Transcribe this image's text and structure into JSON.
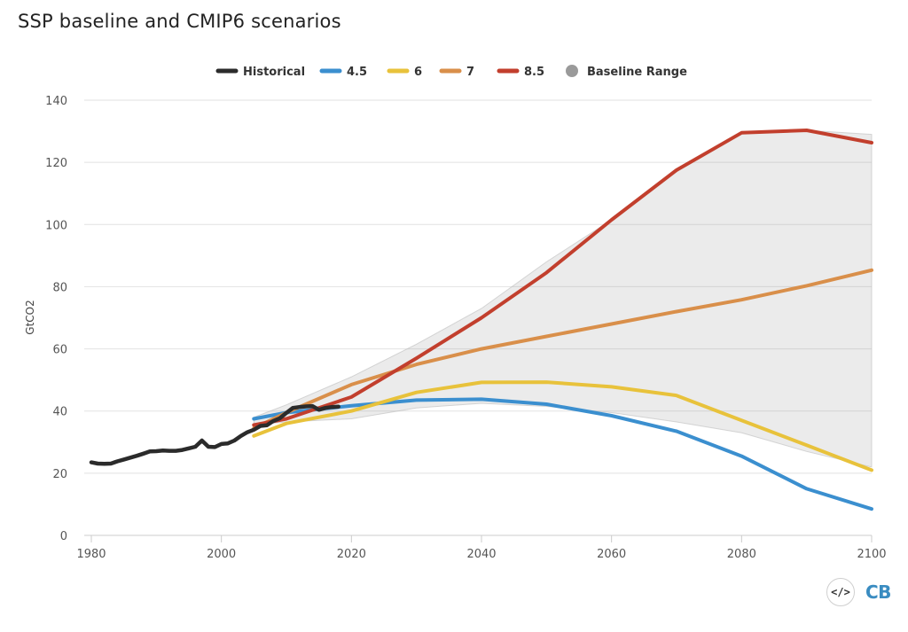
{
  "chart_data": {
    "type": "line",
    "title": "SSP baseline and CMIP6 scenarios",
    "xlabel": "",
    "ylabel": "GtCO2",
    "xlim": [
      1980,
      2100
    ],
    "ylim": [
      0,
      140
    ],
    "x_ticks": [
      1980,
      2000,
      2020,
      2040,
      2060,
      2080,
      2100
    ],
    "y_ticks": [
      0,
      20,
      40,
      60,
      80,
      100,
      120,
      140
    ],
    "grid": "horizontal",
    "legend_position": "top-center",
    "legend": [
      "Historical",
      "4.5",
      "6",
      "7",
      "8.5",
      "Baseline Range"
    ],
    "series": [
      {
        "name": "Historical",
        "color": "#2b2b2b",
        "x": [
          1980,
          1981,
          1982,
          1983,
          1984,
          1985,
          1986,
          1987,
          1988,
          1989,
          1990,
          1991,
          1992,
          1993,
          1994,
          1995,
          1996,
          1997,
          1998,
          1999,
          2000,
          2001,
          2002,
          2003,
          2004,
          2005,
          2006,
          2007,
          2008,
          2009,
          2010,
          2011,
          2012,
          2013,
          2014,
          2015,
          2016,
          2017,
          2018
        ],
        "y": [
          23.5,
          23.1,
          23.0,
          23.1,
          23.8,
          24.4,
          25.0,
          25.6,
          26.3,
          27.0,
          27.1,
          27.3,
          27.2,
          27.2,
          27.5,
          28.0,
          28.5,
          30.5,
          28.5,
          28.4,
          29.4,
          29.6,
          30.5,
          32.0,
          33.2,
          34.0,
          35.2,
          35.4,
          36.8,
          37.7,
          39.4,
          41.0,
          41.3,
          41.5,
          41.6,
          40.4,
          41.0,
          41.3,
          41.4
        ]
      },
      {
        "name": "4.5",
        "color": "#3b8fcf",
        "x": [
          2005,
          2010,
          2020,
          2030,
          2040,
          2050,
          2060,
          2070,
          2080,
          2090,
          2100
        ],
        "y": [
          37.5,
          39.5,
          41.7,
          43.5,
          43.8,
          42.2,
          38.5,
          33.5,
          25.5,
          15.0,
          8.5
        ]
      },
      {
        "name": "6",
        "color": "#e8c23b",
        "x": [
          2005,
          2010,
          2020,
          2030,
          2040,
          2050,
          2060,
          2070,
          2080,
          2090,
          2100
        ],
        "y": [
          32.0,
          36.0,
          40.0,
          46.0,
          49.2,
          49.3,
          47.8,
          45.0,
          37.0,
          29.0,
          21.0
        ]
      },
      {
        "name": "7",
        "color": "#d98f4a",
        "x": [
          2005,
          2010,
          2020,
          2030,
          2040,
          2050,
          2060,
          2070,
          2080,
          2090,
          2100
        ],
        "y": [
          34.5,
          39.5,
          48.5,
          55.0,
          60.0,
          64.0,
          68.0,
          72.0,
          75.8,
          80.3,
          85.3
        ]
      },
      {
        "name": "8.5",
        "color": "#c23f2d",
        "x": [
          2005,
          2010,
          2020,
          2030,
          2040,
          2050,
          2060,
          2070,
          2080,
          2090,
          2100
        ],
        "y": [
          35.5,
          37.5,
          44.5,
          57.0,
          70.0,
          84.5,
          101.5,
          117.5,
          129.5,
          130.3,
          126.3
        ]
      },
      {
        "name": "Baseline Range",
        "color": "#9a9a9a",
        "type": "area",
        "x": [
          2005,
          2010,
          2020,
          2030,
          2040,
          2050,
          2060,
          2070,
          2080,
          2090,
          2100
        ],
        "lower": [
          35.5,
          36.5,
          37.5,
          41.0,
          42.5,
          41.5,
          39.5,
          36.5,
          33.0,
          27.0,
          22.0
        ],
        "upper": [
          38.0,
          42.0,
          51.0,
          61.5,
          73.0,
          88.0,
          101.5,
          117.5,
          129.5,
          130.3,
          129.0
        ]
      }
    ]
  },
  "branding": {
    "embed_symbol": "</>",
    "logo_text": "CB"
  }
}
